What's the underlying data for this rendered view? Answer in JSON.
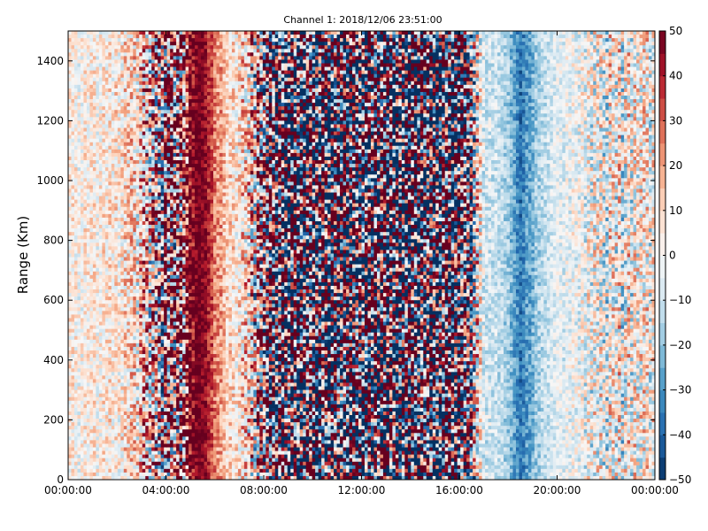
{
  "chart_data": {
    "type": "heatmap",
    "title": "Channel 1: 2018/12/06 23:51:00",
    "xlabel": "",
    "ylabel": "Range (Km)",
    "x_ticks": [
      "00:00:00",
      "04:00:00",
      "08:00:00",
      "12:00:00",
      "16:00:00",
      "20:00:00",
      "00:00:00"
    ],
    "x_range_hours": [
      0,
      24
    ],
    "ylim": [
      0,
      1500
    ],
    "y_ticks": [
      0,
      200,
      400,
      600,
      800,
      1000,
      1200,
      1400
    ],
    "colorbar": {
      "range": [
        -50,
        50
      ],
      "ticks": [
        -50,
        -40,
        -30,
        -20,
        -10,
        0,
        10,
        20,
        30,
        40,
        50
      ],
      "colormap": "RdBu_r",
      "stops": [
        "#053061",
        "#2166ac",
        "#4393c3",
        "#92c5de",
        "#d1e5f0",
        "#f7f7f7",
        "#fddbc7",
        "#f4a582",
        "#d6604d",
        "#b2182b",
        "#67001f"
      ]
    },
    "profile": {
      "hours": [
        0.0,
        1.0,
        2.0,
        2.8,
        3.3,
        4.0,
        4.6,
        5.0,
        5.3,
        5.6,
        6.0,
        6.5,
        7.0,
        7.6,
        8.2,
        9.0,
        12.0,
        16.0,
        16.5,
        17.0,
        17.6,
        18.0,
        18.5,
        18.8,
        19.3,
        20.0,
        21.0,
        21.5,
        22.5,
        24.0
      ],
      "mean_value": [
        3,
        4,
        5,
        6,
        10,
        15,
        30,
        50,
        50,
        45,
        28,
        12,
        4,
        6,
        10,
        0,
        0,
        0,
        0,
        -4,
        -10,
        -18,
        -35,
        -28,
        -14,
        -6,
        0,
        0,
        0,
        0
      ],
      "noise_amplitude": [
        14,
        14,
        16,
        25,
        45,
        70,
        70,
        25,
        8,
        10,
        12,
        14,
        20,
        45,
        80,
        100,
        100,
        100,
        60,
        14,
        10,
        10,
        10,
        10,
        10,
        10,
        16,
        26,
        28,
        24
      ]
    }
  }
}
